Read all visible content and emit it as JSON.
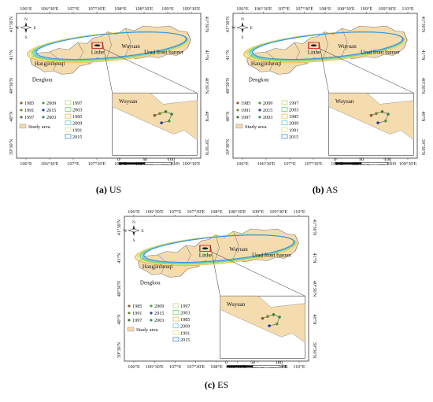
{
  "panels": [
    {
      "id": "US",
      "caption_letter": "(a)",
      "caption_name": "US",
      "top_ticks": [
        "106°E",
        "106°30'E",
        "107°E",
        "107°30'E",
        "108°E",
        "108°30'E",
        "109°E",
        "109°30'E"
      ],
      "bottom_ticks": [
        "106°E",
        "106°30'E",
        "107°E",
        "107°30'E",
        "108°E",
        "108°30'E",
        "109°E",
        "109°30'E"
      ],
      "left_ticks": [
        "41°30'N",
        "41°N",
        "40°30'N",
        "40°N",
        "39°30'N"
      ],
      "right_ticks": [
        "41°30'N",
        "41°N",
        "40°30'N",
        "40°N",
        "39°30'N"
      ],
      "regions": [
        "Linhe",
        "Wuyuan",
        "Urad front banner",
        "Hangjinhouqi",
        "Dengkou"
      ],
      "inset_label": "Wuyuan",
      "legend_points": [
        "1985",
        "2009",
        "1991",
        "2015",
        "1997",
        "2003"
      ],
      "legend_ellipses": [
        "1997",
        "2003",
        "1985",
        "2009",
        "1991",
        "2015"
      ],
      "study_area": "Study area",
      "scale": [
        "0",
        "50",
        "100"
      ],
      "scale_unit": "km",
      "compass": {
        "n": "N",
        "s": "S",
        "e": "E",
        "w": "W"
      }
    },
    {
      "id": "AS",
      "caption_letter": "(b)",
      "caption_name": "AS",
      "top_ticks": [
        "106°E",
        "106°30'E",
        "107°E",
        "107°30'E",
        "108°E",
        "108°30'E",
        "109°E",
        "109°30'E",
        "110°E"
      ],
      "bottom_ticks": [
        "106°E",
        "106°30'E",
        "107°E",
        "107°30'E",
        "108°E",
        "108°30'E",
        "109°E",
        "109°30'E"
      ],
      "left_ticks": [
        "41°30'N",
        "41°N",
        "40°30'N",
        "40°N",
        "39°30'N"
      ],
      "right_ticks": [
        "41°30'N",
        "41°N",
        "40°30'N",
        "40°N",
        "39°30'N"
      ],
      "regions": [
        "Linhe",
        "Wuyuan",
        "Urad front banner",
        "Hangjinhouqi",
        "Dengkou"
      ],
      "inset_label": "Wuyuan",
      "legend_points": [
        "1985",
        "2009",
        "1991",
        "2015",
        "1997",
        "2003"
      ],
      "legend_ellipses": [
        "1997",
        "2003",
        "1985",
        "2009",
        "1991",
        "2015"
      ],
      "study_area": "Study area",
      "scale": [
        "0",
        "50",
        "100"
      ],
      "scale_unit": "km",
      "compass": {
        "n": "N",
        "s": "S",
        "e": "E",
        "w": "W"
      }
    },
    {
      "id": "ES",
      "caption_letter": "(c)",
      "caption_name": "ES",
      "top_ticks": [
        "106°E",
        "106°30'E",
        "107°E",
        "107°30'E",
        "108°E",
        "108°30'E",
        "109°E",
        "109°30'E",
        "110°E"
      ],
      "bottom_ticks": [
        "106°E",
        "106°30'E",
        "107°E",
        "107°30'E",
        "108°E",
        "108°30'E",
        "109°E",
        "109°30'E",
        "110°E"
      ],
      "left_ticks": [
        "41°30'N",
        "41°N",
        "40°30'N",
        "40°N",
        "39°30'N"
      ],
      "right_ticks": [
        "41°30'N",
        "41°N",
        "40°30'N",
        "40°N",
        "39°30'N"
      ],
      "regions": [
        "Linhe",
        "Wuyuan",
        "Urad front banner",
        "Hangjinhouqi",
        "Dengkou"
      ],
      "inset_label": "Wuyuan",
      "legend_points": [
        "1985",
        "2009",
        "1991",
        "2015",
        "1997",
        "2003"
      ],
      "legend_ellipses": [
        "1997",
        "2003",
        "1985",
        "2009",
        "1991",
        "2015"
      ],
      "study_area": "Study area",
      "scale": [
        "0",
        "50",
        "100"
      ],
      "scale_unit": "km",
      "compass": {
        "n": "N",
        "s": "S",
        "e": "E",
        "w": "W"
      }
    }
  ],
  "colors": {
    "land": "#f5dcae",
    "land_stroke": "#7a7a7a",
    "frame": "#333333",
    "inset_box": "#d9242a",
    "year_1985": "#8a5a2b",
    "year_1991": "#6b8e23",
    "year_1997": "#3a7d2a",
    "year_2003": "#2e8b57",
    "year_2009": "#4a9d3a",
    "year_2015": "#1f3ea8",
    "ellipse_1985": "#f2b94a",
    "ellipse_1991": "#f5e07a",
    "ellipse_1997": "#b8e07a",
    "ellipse_2003": "#6cd66c",
    "ellipse_2009": "#6ec9d8",
    "ellipse_2015": "#3d8fe0"
  }
}
